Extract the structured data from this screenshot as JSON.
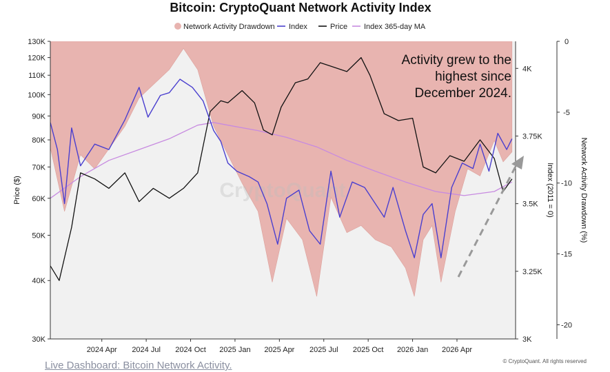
{
  "chart_data": {
    "type": "line",
    "title": "Bitcoin: CryptoQuant Network Activity Index",
    "legend": [
      {
        "label": "Network Activity Drawdown",
        "color": "#e8b4b0",
        "shape": "dot"
      },
      {
        "label": "Index",
        "color": "#4a3fcf",
        "shape": "line"
      },
      {
        "label": "Price",
        "color": "#111111",
        "shape": "line"
      },
      {
        "label": "Index 365-day MA",
        "color": "#c78ae0",
        "shape": "line"
      }
    ],
    "x_ticks": [
      "2024 Apr",
      "2024 Jul",
      "2024 Oct",
      "2025 Jan",
      "2025 Apr",
      "2025 Jul",
      "2025 Oct",
      "2026 Jan",
      "2026 Apr"
    ],
    "y_left": {
      "label": "Price ($)",
      "scale": "log",
      "range": [
        30000,
        130000
      ],
      "ticks": [
        "30K",
        "40K",
        "50K",
        "60K",
        "70K",
        "80K",
        "90K",
        "100K",
        "110K",
        "120K",
        "130K"
      ]
    },
    "y_index": {
      "label": "Index (2011 = 0)",
      "range": [
        3000,
        4100
      ],
      "ticks": [
        "3K",
        "3.25K",
        "3.5K",
        "3.75K",
        "4K"
      ]
    },
    "y_right": {
      "label": "Network Activity Drawdown (%)",
      "range": [
        -21,
        0
      ],
      "ticks": [
        "0",
        "-5",
        "-10",
        "-15",
        "-20"
      ]
    },
    "series": [
      {
        "name": "Price",
        "color": "#111111",
        "points": [
          [
            2024.0,
            43000
          ],
          [
            2024.05,
            40000
          ],
          [
            2024.12,
            52000
          ],
          [
            2024.17,
            68000
          ],
          [
            2024.25,
            66000
          ],
          [
            2024.33,
            63000
          ],
          [
            2024.42,
            68000
          ],
          [
            2024.5,
            59000
          ],
          [
            2024.58,
            63000
          ],
          [
            2024.67,
            60000
          ],
          [
            2024.75,
            63000
          ],
          [
            2024.83,
            68000
          ],
          [
            2024.9,
            92000
          ],
          [
            2024.96,
            97000
          ],
          [
            2025.0,
            96000
          ],
          [
            2025.08,
            102000
          ],
          [
            2025.15,
            96000
          ],
          [
            2025.2,
            84000
          ],
          [
            2025.25,
            82000
          ],
          [
            2025.3,
            94000
          ],
          [
            2025.38,
            106000
          ],
          [
            2025.45,
            108000
          ],
          [
            2025.52,
            117000
          ],
          [
            2025.58,
            115000
          ],
          [
            2025.67,
            112000
          ],
          [
            2025.75,
            120000
          ],
          [
            2025.8,
            110000
          ],
          [
            2025.88,
            91000
          ],
          [
            2025.96,
            88000
          ],
          [
            2026.04,
            89000
          ],
          [
            2026.1,
            70000
          ],
          [
            2026.17,
            68000
          ],
          [
            2026.25,
            74000
          ],
          [
            2026.33,
            72000
          ],
          [
            2026.42,
            80000
          ],
          [
            2026.5,
            73000
          ],
          [
            2026.55,
            62000
          ],
          [
            2026.6,
            66000
          ]
        ]
      },
      {
        "name": "Index",
        "color": "#4a3fcf",
        "points": [
          [
            2024.0,
            3800
          ],
          [
            2024.04,
            3700
          ],
          [
            2024.08,
            3500
          ],
          [
            2024.12,
            3780
          ],
          [
            2024.17,
            3640
          ],
          [
            2024.25,
            3720
          ],
          [
            2024.33,
            3700
          ],
          [
            2024.42,
            3810
          ],
          [
            2024.5,
            3930
          ],
          [
            2024.55,
            3820
          ],
          [
            2024.62,
            3900
          ],
          [
            2024.67,
            3910
          ],
          [
            2024.73,
            3960
          ],
          [
            2024.8,
            3930
          ],
          [
            2024.86,
            3880
          ],
          [
            2024.92,
            3770
          ],
          [
            2024.96,
            3730
          ],
          [
            2025.0,
            3650
          ],
          [
            2025.05,
            3620
          ],
          [
            2025.12,
            3600
          ],
          [
            2025.17,
            3580
          ],
          [
            2025.22,
            3500
          ],
          [
            2025.28,
            3350
          ],
          [
            2025.33,
            3520
          ],
          [
            2025.4,
            3550
          ],
          [
            2025.46,
            3400
          ],
          [
            2025.52,
            3350
          ],
          [
            2025.58,
            3620
          ],
          [
            2025.63,
            3450
          ],
          [
            2025.7,
            3580
          ],
          [
            2025.77,
            3560
          ],
          [
            2025.83,
            3500
          ],
          [
            2025.88,
            3450
          ],
          [
            2025.93,
            3560
          ],
          [
            2026.0,
            3400
          ],
          [
            2026.05,
            3300
          ],
          [
            2026.1,
            3460
          ],
          [
            2026.15,
            3500
          ],
          [
            2026.2,
            3300
          ],
          [
            2026.26,
            3560
          ],
          [
            2026.32,
            3650
          ],
          [
            2026.38,
            3630
          ],
          [
            2026.42,
            3720
          ],
          [
            2026.47,
            3620
          ],
          [
            2026.52,
            3760
          ],
          [
            2026.57,
            3700
          ],
          [
            2026.6,
            3740
          ]
        ]
      },
      {
        "name": "Index 365-day MA",
        "color": "#c78ae0",
        "points": [
          [
            2024.0,
            3520
          ],
          [
            2024.17,
            3600
          ],
          [
            2024.33,
            3660
          ],
          [
            2024.5,
            3700
          ],
          [
            2024.67,
            3740
          ],
          [
            2024.83,
            3790
          ],
          [
            2024.92,
            3800
          ],
          [
            2025.0,
            3790
          ],
          [
            2025.17,
            3770
          ],
          [
            2025.33,
            3745
          ],
          [
            2025.5,
            3710
          ],
          [
            2025.67,
            3660
          ],
          [
            2025.83,
            3620
          ],
          [
            2026.0,
            3580
          ],
          [
            2026.17,
            3545
          ],
          [
            2026.33,
            3530
          ],
          [
            2026.5,
            3545
          ],
          [
            2026.6,
            3580
          ]
        ]
      },
      {
        "name": "Network Activity Drawdown",
        "color": "#e8b4b0",
        "unit": "%",
        "points": [
          [
            2024.0,
            -7.5
          ],
          [
            2024.08,
            -12
          ],
          [
            2024.17,
            -8
          ],
          [
            2024.25,
            -9
          ],
          [
            2024.42,
            -6
          ],
          [
            2024.5,
            -4
          ],
          [
            2024.67,
            -2
          ],
          [
            2024.75,
            -0.5
          ],
          [
            2024.83,
            -2
          ],
          [
            2024.92,
            -6
          ],
          [
            2025.0,
            -8
          ],
          [
            2025.08,
            -10
          ],
          [
            2025.17,
            -12
          ],
          [
            2025.25,
            -17
          ],
          [
            2025.33,
            -12.5
          ],
          [
            2025.42,
            -14
          ],
          [
            2025.5,
            -18
          ],
          [
            2025.58,
            -11
          ],
          [
            2025.67,
            -13.5
          ],
          [
            2025.75,
            -13
          ],
          [
            2025.83,
            -14
          ],
          [
            2025.92,
            -14.5
          ],
          [
            2026.0,
            -16
          ],
          [
            2026.05,
            -18
          ],
          [
            2026.1,
            -14
          ],
          [
            2026.15,
            -13
          ],
          [
            2026.2,
            -17
          ],
          [
            2026.28,
            -12
          ],
          [
            2026.35,
            -9
          ],
          [
            2026.42,
            -9.5
          ],
          [
            2026.5,
            -7
          ],
          [
            2026.55,
            -8.5
          ],
          [
            2026.6,
            -7.8
          ]
        ]
      }
    ],
    "annotation": "Activity grew to the highest since December 2024.",
    "watermark": "CryptoQuant"
  },
  "footer": {
    "link_text": "Live Dashboard: Bitcoin Network Activity.",
    "copyright": "© CryptoQuant. All rights reserved"
  }
}
